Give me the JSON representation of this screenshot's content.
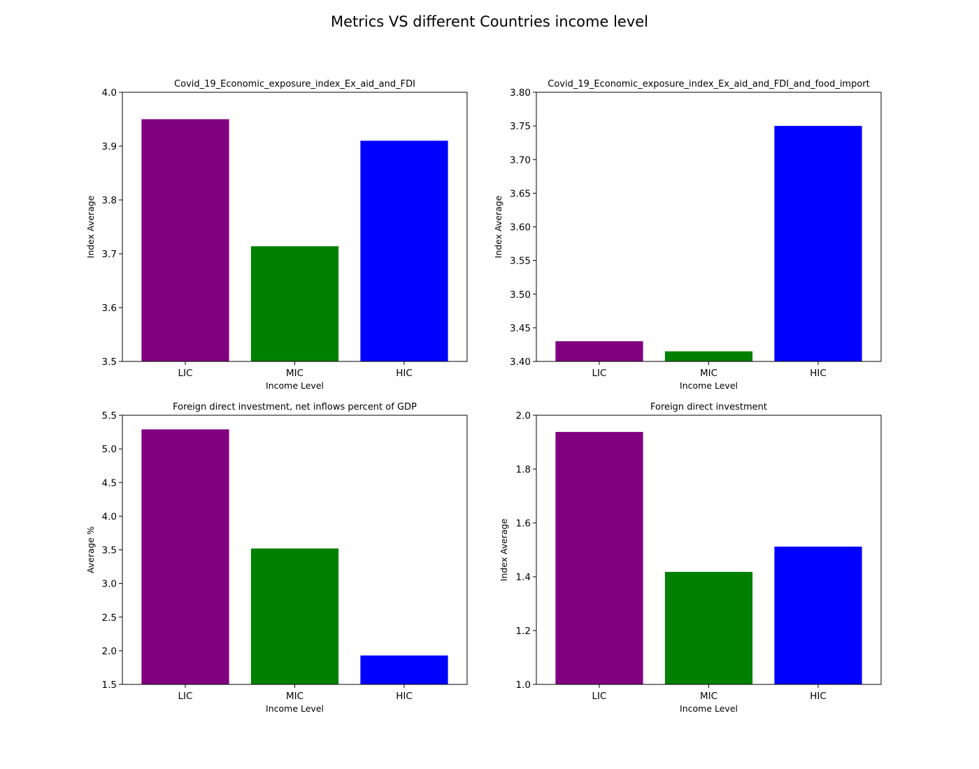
{
  "figure": {
    "title": "Metrics VS different Countries income level"
  },
  "chart_data": [
    {
      "type": "bar",
      "title": "Covid_19_Economic_exposure_index_Ex_aid_and_FDI",
      "xlabel": "Income Level",
      "ylabel": "Index Average",
      "categories": [
        "LIC",
        "MIC",
        "HIC"
      ],
      "values": [
        3.95,
        3.714,
        3.91
      ],
      "colors": [
        "#800080",
        "#008000",
        "#0000ff"
      ],
      "ylim": [
        3.5,
        4.0
      ],
      "yticks": [
        "3.5",
        "3.6",
        "3.7",
        "3.8",
        "3.9",
        "4.0"
      ],
      "grid": false
    },
    {
      "type": "bar",
      "title": "Covid_19_Economic_exposure_index_Ex_aid_and_FDI_and_food_import",
      "xlabel": "Income Level",
      "ylabel": "Index Average",
      "categories": [
        "LIC",
        "MIC",
        "HIC"
      ],
      "values": [
        3.43,
        3.415,
        3.75
      ],
      "colors": [
        "#800080",
        "#008000",
        "#0000ff"
      ],
      "ylim": [
        3.4,
        3.8
      ],
      "yticks": [
        "3.40",
        "3.45",
        "3.50",
        "3.55",
        "3.60",
        "3.65",
        "3.70",
        "3.75",
        "3.80"
      ],
      "grid": false
    },
    {
      "type": "bar",
      "title": "Foreign direct investment, net inflows percent of GDP",
      "xlabel": "Income Level",
      "ylabel": "Average %",
      "categories": [
        "LIC",
        "MIC",
        "HIC"
      ],
      "values": [
        5.29,
        3.52,
        1.93
      ],
      "colors": [
        "#800080",
        "#008000",
        "#0000ff"
      ],
      "ylim": [
        1.5,
        5.5
      ],
      "yticks": [
        "1.5",
        "2.0",
        "2.5",
        "3.0",
        "3.5",
        "4.0",
        "4.5",
        "5.0",
        "5.5"
      ],
      "grid": false
    },
    {
      "type": "bar",
      "title": "Foreign direct investment",
      "xlabel": "Income Level",
      "ylabel": "Index Average",
      "categories": [
        "LIC",
        "MIC",
        "HIC"
      ],
      "values": [
        1.938,
        1.418,
        1.512
      ],
      "colors": [
        "#800080",
        "#008000",
        "#0000ff"
      ],
      "ylim": [
        1.0,
        2.0
      ],
      "yticks": [
        "1.0",
        "1.2",
        "1.4",
        "1.6",
        "1.8",
        "2.0"
      ],
      "grid": false
    }
  ]
}
